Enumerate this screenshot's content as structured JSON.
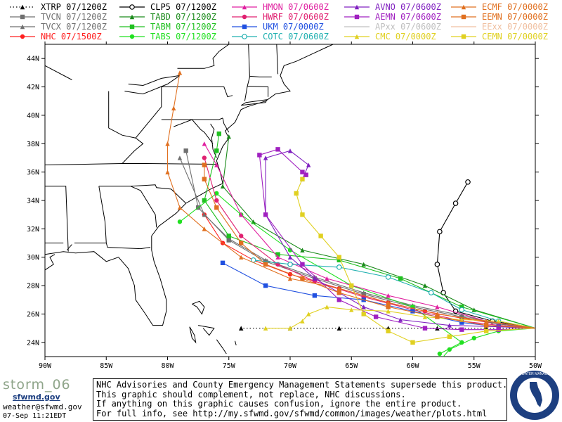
{
  "legend": [
    {
      "label": "XTRP 07/1200Z",
      "color": "#000000",
      "marker": "tri",
      "dash": "dot"
    },
    {
      "label": "TVCN 07/1200Z",
      "color": "#707070",
      "marker": "square",
      "dash": "solid"
    },
    {
      "label": "TVCX 07/1200Z",
      "color": "#707070",
      "marker": "tri",
      "dash": "solid"
    },
    {
      "label": "NHC 07/1500Z",
      "color": "#ff2020",
      "marker": "circle",
      "dash": "solid"
    },
    {
      "label": "CLP5 07/1200Z",
      "color": "#000000",
      "marker": "circle-open",
      "dash": "solid"
    },
    {
      "label": "TABD 07/1200Z",
      "color": "#1a8a1a",
      "marker": "tri",
      "dash": "solid"
    },
    {
      "label": "TABM 07/1200Z",
      "color": "#20c020",
      "marker": "square",
      "dash": "solid"
    },
    {
      "label": "TABS 07/1200Z",
      "color": "#20e020",
      "marker": "circle",
      "dash": "solid"
    },
    {
      "label": "HMON 07/0600Z",
      "color": "#e020a0",
      "marker": "tri",
      "dash": "solid"
    },
    {
      "label": "HWRF 07/0600Z",
      "color": "#e02070",
      "marker": "circle",
      "dash": "solid"
    },
    {
      "label": "UKM 07/0000Z",
      "color": "#2050e0",
      "marker": "square",
      "dash": "solid"
    },
    {
      "label": "COTC 07/0600Z",
      "color": "#20b0b0",
      "marker": "circle-open",
      "dash": "solid"
    },
    {
      "label": "AVNO 07/0600Z",
      "color": "#8020c0",
      "marker": "tri",
      "dash": "solid"
    },
    {
      "label": "AEMN 07/0600Z",
      "color": "#a020c0",
      "marker": "square",
      "dash": "solid"
    },
    {
      "label": "APxx 07/0600Z",
      "color": "#c0c0c0",
      "marker": "none",
      "dash": "solid"
    },
    {
      "label": "CMC 07/0000Z",
      "color": "#e0d020",
      "marker": "tri",
      "dash": "solid"
    },
    {
      "label": "ECMF 07/0000Z",
      "color": "#e07020",
      "marker": "tri",
      "dash": "solid"
    },
    {
      "label": "EEMN 07/0000Z",
      "color": "#e07020",
      "marker": "square",
      "dash": "solid"
    },
    {
      "label": "EExx 07/0000Z",
      "color": "#f0c0a0",
      "marker": "none",
      "dash": "solid"
    },
    {
      "label": "CEMN 07/0000Z",
      "color": "#e0d020",
      "marker": "square",
      "dash": "solid"
    }
  ],
  "axes": {
    "lon_labels": [
      "90W",
      "85W",
      "80W",
      "75W",
      "70W",
      "65W",
      "60W",
      "55W",
      "50W"
    ],
    "lat_labels": [
      "44N",
      "42N",
      "40N",
      "38N",
      "36N",
      "34N",
      "32N",
      "30N",
      "28N",
      "26N",
      "24N"
    ]
  },
  "tracks": [
    {
      "model": "XTRP",
      "color": "#000000",
      "marker": "tri",
      "dash": "dot",
      "pts": [
        [
          -50,
          25
        ],
        [
          -54,
          25
        ],
        [
          -58,
          25
        ],
        [
          -62,
          25
        ],
        [
          -66,
          25
        ],
        [
          -70,
          25
        ],
        [
          -74,
          25
        ]
      ]
    },
    {
      "model": "CLP5",
      "color": "#000000",
      "marker": "circle-open",
      "dash": "solid",
      "pts": [
        [
          -50,
          25
        ],
        [
          -53.5,
          25.5
        ],
        [
          -56.5,
          26.2
        ],
        [
          -57.5,
          27.5
        ],
        [
          -58,
          29.5
        ],
        [
          -57.8,
          31.8
        ],
        [
          -56.5,
          33.8
        ],
        [
          -55.5,
          35.3
        ]
      ]
    },
    {
      "model": "NHC",
      "color": "#ff2020",
      "marker": "circle",
      "dash": "solid",
      "pts": [
        [
          -50,
          25
        ],
        [
          -53,
          25.3
        ],
        [
          -56,
          25.7
        ],
        [
          -59,
          26.2
        ],
        [
          -62,
          26.8
        ],
        [
          -66,
          27.8
        ],
        [
          -70,
          28.8
        ],
        [
          -73,
          29.8
        ],
        [
          -75.5,
          31
        ],
        [
          -77,
          33
        ]
      ]
    },
    {
      "model": "TVCN",
      "color": "#707070",
      "marker": "square",
      "dash": "solid",
      "pts": [
        [
          -50,
          25
        ],
        [
          -53,
          25.3
        ],
        [
          -56,
          25.8
        ],
        [
          -60,
          26.5
        ],
        [
          -64,
          27.4
        ],
        [
          -68,
          28.5
        ],
        [
          -72,
          29.7
        ],
        [
          -75,
          31.2
        ],
        [
          -77.5,
          33.5
        ],
        [
          -78.5,
          37.5
        ]
      ]
    },
    {
      "model": "TVCX",
      "color": "#707070",
      "marker": "tri",
      "dash": "solid",
      "pts": [
        [
          -50,
          25
        ],
        [
          -53,
          25.3
        ],
        [
          -56,
          25.9
        ],
        [
          -60,
          26.6
        ],
        [
          -64,
          27.5
        ],
        [
          -68,
          28.6
        ],
        [
          -72,
          29.8
        ],
        [
          -75,
          31.3
        ],
        [
          -77,
          33
        ],
        [
          -79,
          37
        ]
      ]
    },
    {
      "model": "TABD",
      "color": "#1a8a1a",
      "marker": "tri",
      "dash": "solid",
      "pts": [
        [
          -50,
          25
        ],
        [
          -55,
          26.3
        ],
        [
          -59,
          28
        ],
        [
          -64,
          29.5
        ],
        [
          -69,
          30.5
        ],
        [
          -73,
          32.5
        ],
        [
          -75.5,
          35
        ],
        [
          -75,
          38.5
        ]
      ]
    },
    {
      "model": "TABM",
      "color": "#20c020",
      "marker": "square",
      "dash": "solid",
      "pts": [
        [
          -50,
          25
        ],
        [
          -56,
          26.5
        ],
        [
          -61,
          28.5
        ],
        [
          -66,
          29.8
        ],
        [
          -71,
          30.2
        ],
        [
          -75,
          31.5
        ],
        [
          -77,
          34
        ],
        [
          -76,
          37.5
        ],
        [
          -75.8,
          38.7
        ]
      ]
    },
    {
      "model": "TABS",
      "color": "#20e020",
      "marker": "circle",
      "dash": "solid",
      "pts": [
        [
          -50,
          25
        ],
        [
          -53,
          24.8
        ],
        [
          -55,
          24.3
        ],
        [
          -57,
          23.5
        ],
        [
          -57.8,
          22.7
        ],
        [
          -57.8,
          23.2
        ],
        [
          -56,
          24
        ],
        [
          -60,
          26.5
        ],
        [
          -65,
          28
        ],
        [
          -70,
          30.5
        ],
        [
          -74,
          33
        ],
        [
          -76,
          34.5
        ],
        [
          -79,
          32.5
        ]
      ]
    },
    {
      "model": "HMON",
      "color": "#e020a0",
      "marker": "tri",
      "dash": "solid",
      "pts": [
        [
          -50,
          25
        ],
        [
          -54,
          25.5
        ],
        [
          -58,
          26.5
        ],
        [
          -62,
          27.3
        ],
        [
          -67,
          28.5
        ],
        [
          -71,
          30
        ],
        [
          -74,
          33
        ],
        [
          -76,
          36.5
        ],
        [
          -77,
          38
        ]
      ]
    },
    {
      "model": "HWRF",
      "color": "#e02070",
      "marker": "circle",
      "dash": "solid",
      "pts": [
        [
          -50,
          25
        ],
        [
          -53,
          25.2
        ],
        [
          -56,
          25.5
        ],
        [
          -60,
          26.3
        ],
        [
          -64,
          27.2
        ],
        [
          -68,
          28.3
        ],
        [
          -71,
          29.5
        ],
        [
          -74,
          31.5
        ],
        [
          -76,
          34
        ],
        [
          -77,
          37
        ]
      ]
    },
    {
      "model": "UKM",
      "color": "#2050e0",
      "marker": "square",
      "dash": "solid",
      "pts": [
        [
          -50,
          25
        ],
        [
          -53,
          25.1
        ],
        [
          -56,
          25.4
        ],
        [
          -60,
          26.2
        ],
        [
          -64,
          27
        ],
        [
          -68,
          27.3
        ],
        [
          -72,
          28
        ],
        [
          -75.5,
          29.6
        ]
      ]
    },
    {
      "model": "COTC",
      "color": "#20b0b0",
      "marker": "circle-open",
      "dash": "solid",
      "pts": [
        [
          -50,
          25
        ],
        [
          -53,
          25.5
        ],
        [
          -56,
          26.3
        ],
        [
          -58.5,
          27.5
        ],
        [
          -62,
          28.6
        ],
        [
          -66,
          29.3
        ],
        [
          -70,
          29.5
        ],
        [
          -73,
          29.8
        ]
      ]
    },
    {
      "model": "AVNO",
      "color": "#8020c0",
      "marker": "tri",
      "dash": "solid",
      "pts": [
        [
          -50,
          25
        ],
        [
          -53,
          25.1
        ],
        [
          -57,
          25.2
        ],
        [
          -61,
          25.6
        ],
        [
          -64,
          26.5
        ],
        [
          -66,
          27.5
        ],
        [
          -68,
          28.5
        ],
        [
          -70,
          30
        ],
        [
          -72,
          33
        ],
        [
          -72,
          37
        ],
        [
          -70,
          37.5
        ],
        [
          -68.5,
          36.5
        ],
        [
          -69,
          35.5
        ]
      ]
    },
    {
      "model": "AEMN",
      "color": "#a020c0",
      "marker": "square",
      "dash": "solid",
      "pts": [
        [
          -50,
          25
        ],
        [
          -53,
          24.9
        ],
        [
          -56,
          24.9
        ],
        [
          -59,
          25
        ],
        [
          -63,
          25.8
        ],
        [
          -66,
          27
        ],
        [
          -69,
          29.5
        ],
        [
          -72,
          33
        ],
        [
          -72.5,
          37.2
        ],
        [
          -71,
          37.6
        ],
        [
          -69,
          36
        ],
        [
          -68.7,
          35.8
        ]
      ]
    },
    {
      "model": "CMC",
      "color": "#e0d020",
      "marker": "tri",
      "dash": "solid",
      "pts": [
        [
          -50,
          25
        ],
        [
          -53,
          25.5
        ],
        [
          -56,
          25.6
        ],
        [
          -59,
          25.8
        ],
        [
          -62,
          26.2
        ],
        [
          -65,
          26.3
        ],
        [
          -67,
          26.5
        ],
        [
          -68.5,
          26
        ],
        [
          -69,
          25.5
        ],
        [
          -70,
          25
        ],
        [
          -72,
          25
        ]
      ]
    },
    {
      "model": "CEMN",
      "color": "#e0d020",
      "marker": "square",
      "dash": "solid",
      "pts": [
        [
          -50,
          25
        ],
        [
          -54,
          24.8
        ],
        [
          -57,
          24.4
        ],
        [
          -60,
          24
        ],
        [
          -62,
          24.8
        ],
        [
          -64,
          26
        ],
        [
          -65,
          28
        ],
        [
          -66,
          30
        ],
        [
          -67.5,
          31.5
        ],
        [
          -69,
          33
        ],
        [
          -69.5,
          34.5
        ],
        [
          -69,
          35.5
        ]
      ]
    },
    {
      "model": "ECMF",
      "color": "#e07020",
      "marker": "tri",
      "dash": "solid",
      "pts": [
        [
          -50,
          25
        ],
        [
          -54,
          25.5
        ],
        [
          -58,
          26
        ],
        [
          -62,
          26.8
        ],
        [
          -66,
          27.8
        ],
        [
          -70,
          28.5
        ],
        [
          -74,
          30
        ],
        [
          -77,
          32
        ],
        [
          -79,
          33.5
        ],
        [
          -80,
          36
        ],
        [
          -80,
          38
        ],
        [
          -79.5,
          40.5
        ],
        [
          -79,
          43
        ]
      ]
    },
    {
      "model": "EEMN",
      "color": "#e07020",
      "marker": "square",
      "dash": "solid",
      "pts": [
        [
          -50,
          25
        ],
        [
          -54,
          25.2
        ],
        [
          -58,
          25.8
        ],
        [
          -62,
          26.5
        ],
        [
          -66,
          27.5
        ],
        [
          -69,
          28.5
        ],
        [
          -72,
          29.5
        ],
        [
          -74,
          31
        ],
        [
          -76,
          33.5
        ],
        [
          -77,
          35.5
        ],
        [
          -77,
          36.5
        ]
      ]
    }
  ],
  "disclaimer": {
    "lines": [
      "NHC Advisories and County Emergency Management Statements supersede this product.",
      "This graphic should complement, not replace, NHC discussions.",
      "If anything on this graphic causes confusion, ignore the entire product.",
      "For full info, see  http://my.sfwmd.gov/sfwmd/common/images/weather/plots.html"
    ]
  },
  "branding": {
    "storm": "storm_06",
    "site": "sfwmd.gov",
    "email": "weather@sfwmd.gov",
    "timestamp": "07-Sep 11:21EDT"
  },
  "seal_text": "SOUTH FLORIDA WATER MANAGEMENT DISTRICT"
}
